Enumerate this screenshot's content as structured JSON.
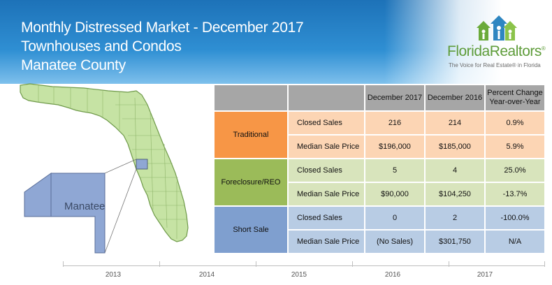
{
  "header": {
    "title_line1": "Monthly Distressed Market - December 2017",
    "title_line2": "Townhouses and Condos",
    "title_line3": "Manatee County"
  },
  "logo": {
    "name": "FloridaRealtors",
    "name_part1": "Florida",
    "name_part2": "Realtors",
    "registered": "®",
    "tagline": "The Voice for Real Estate® in Florida",
    "color": "#5e9c3a",
    "icon": "houses-with-people-icon"
  },
  "map": {
    "county_label": "Manatee",
    "state_color": "#c6e3a4",
    "county_color": "#8fa7d4"
  },
  "table": {
    "headers": [
      "December 2017",
      "December 2016",
      "Percent Change Year-over-Year"
    ],
    "header_pct_line1": "Percent Change",
    "header_pct_line2": "Year-over-Year",
    "groups": [
      {
        "category": "Traditional",
        "color": "#f79646",
        "rows": [
          {
            "metric": "Closed Sales",
            "dec2017": "216",
            "dec2016": "214",
            "change": "0.9%"
          },
          {
            "metric": "Median Sale Price",
            "dec2017": "$196,000",
            "dec2016": "$185,000",
            "change": "5.9%"
          }
        ]
      },
      {
        "category": "Foreclosure/REO",
        "color": "#9bbb59",
        "rows": [
          {
            "metric": "Closed Sales",
            "dec2017": "5",
            "dec2016": "4",
            "change": "25.0%"
          },
          {
            "metric": "Median Sale Price",
            "dec2017": "$90,000",
            "dec2016": "$104,250",
            "change": "-13.7%"
          }
        ]
      },
      {
        "category": "Short Sale",
        "color": "#7f9fcf",
        "rows": [
          {
            "metric": "Closed Sales",
            "dec2017": "0",
            "dec2016": "2",
            "change": "-100.0%"
          },
          {
            "metric": "Median Sale Price",
            "dec2017": "(No Sales)",
            "dec2016": "$301,750",
            "change": "N/A"
          }
        ]
      }
    ]
  },
  "timeline": {
    "years": [
      "2013",
      "2014",
      "2015",
      "2016",
      "2017"
    ]
  }
}
